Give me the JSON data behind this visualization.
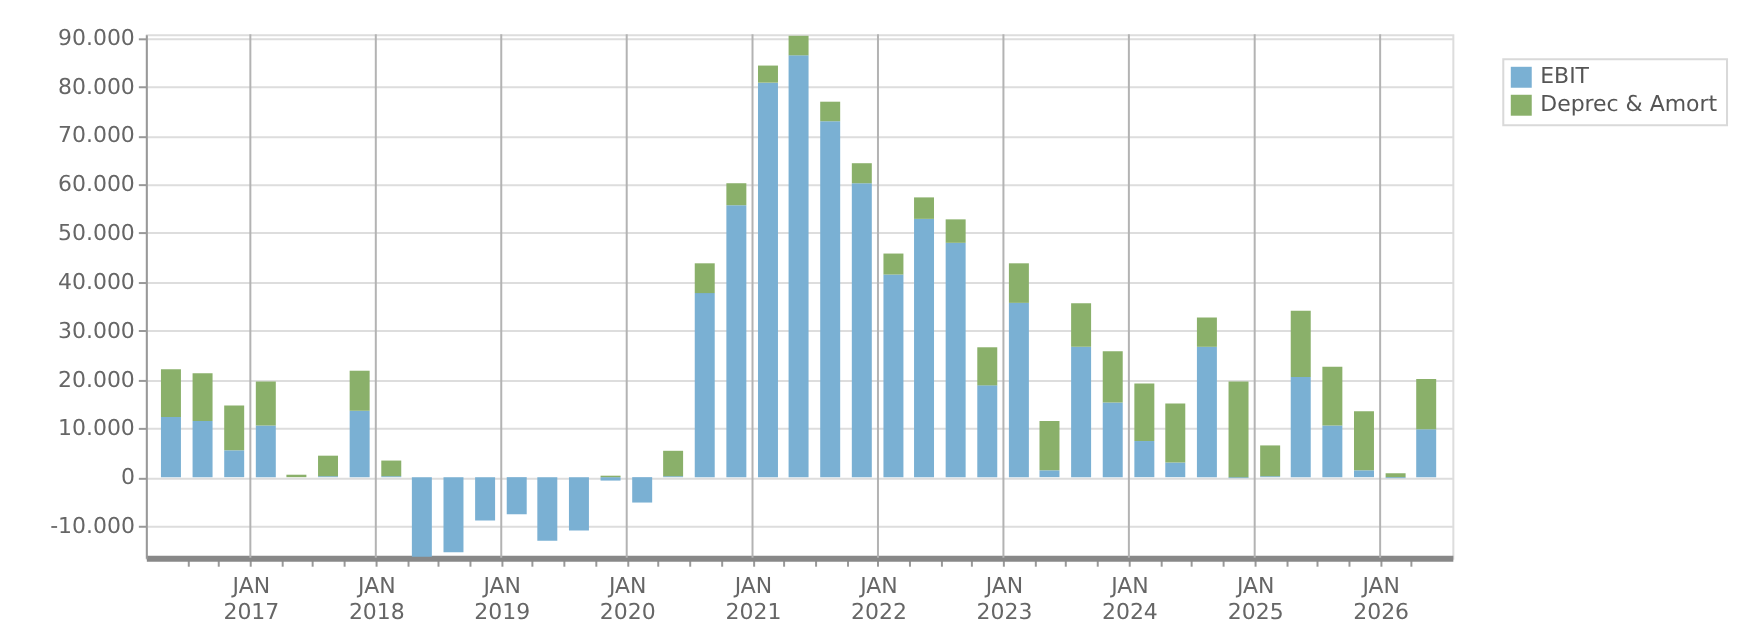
{
  "chart_data": {
    "type": "bar",
    "stacked": true,
    "x": [
      "2016-05-15",
      "2016-08-15",
      "2016-11-15",
      "2017-02-15",
      "2017-05-15",
      "2017-08-15",
      "2017-11-15",
      "2018-02-15",
      "2018-05-15",
      "2018-08-15",
      "2018-11-15",
      "2019-02-15",
      "2019-05-15",
      "2019-08-15",
      "2019-11-15",
      "2020-02-15",
      "2020-05-15",
      "2020-08-15",
      "2020-11-15",
      "2021-02-15",
      "2021-05-15",
      "2021-08-15",
      "2021-11-15",
      "2022-02-15",
      "2022-05-15",
      "2022-08-15",
      "2022-11-15",
      "2023-02-15",
      "2023-05-15",
      "2023-08-15",
      "2023-11-15",
      "2024-02-15",
      "2024-05-15",
      "2024-08-15",
      "2024-11-15",
      "2025-02-15",
      "2025-05-15",
      "2025-08-15",
      "2025-11-15",
      "2026-02-15",
      "2026-05-15"
    ],
    "series": [
      {
        "name": "EBIT",
        "color": "#7ab0d3",
        "values": [
          12300,
          11500,
          5500,
          10600,
          0,
          200,
          13600,
          200,
          -16300,
          -15400,
          -8900,
          -7600,
          -13000,
          -10900,
          -700,
          -5200,
          200,
          37700,
          55700,
          80800,
          86400,
          72900,
          60200,
          41500,
          52900,
          48000,
          18800,
          35700,
          1400,
          26700,
          15300,
          7400,
          3000,
          26700,
          -200,
          200,
          20500,
          10600,
          1400,
          -200,
          9800
        ]
      },
      {
        "name": "Deprec & Amort",
        "color": "#8ab06a",
        "values": [
          9800,
          9800,
          9200,
          9000,
          500,
          4200,
          8200,
          3200,
          0,
          0,
          0,
          0,
          0,
          0,
          300,
          0,
          5200,
          6100,
          4500,
          3500,
          4000,
          4000,
          4100,
          4300,
          4400,
          4800,
          7800,
          8100,
          10100,
          8900,
          10500,
          11800,
          12100,
          6000,
          19600,
          6300,
          13600,
          12000,
          12100,
          800,
          10300
        ]
      }
    ],
    "xlim": [
      "2016-04-01",
      "2026-07-01"
    ],
    "xticks": [
      {
        "value": "2016-07-01",
        "label": null
      },
      {
        "value": "2016-10-01",
        "label": null
      },
      {
        "value": "2017-01-01",
        "label": "JAN 2017"
      },
      {
        "value": "2017-04-01",
        "label": null
      },
      {
        "value": "2017-07-01",
        "label": null
      },
      {
        "value": "2017-10-01",
        "label": null
      },
      {
        "value": "2018-01-01",
        "label": "JAN 2018"
      },
      {
        "value": "2018-04-01",
        "label": null
      },
      {
        "value": "2018-07-01",
        "label": null
      },
      {
        "value": "2018-10-01",
        "label": null
      },
      {
        "value": "2019-01-01",
        "label": "JAN 2019"
      },
      {
        "value": "2019-04-01",
        "label": null
      },
      {
        "value": "2019-07-01",
        "label": null
      },
      {
        "value": "2019-10-01",
        "label": null
      },
      {
        "value": "2020-01-01",
        "label": "JAN 2020"
      },
      {
        "value": "2020-04-01",
        "label": null
      },
      {
        "value": "2020-07-01",
        "label": null
      },
      {
        "value": "2020-10-01",
        "label": null
      },
      {
        "value": "2021-01-01",
        "label": "JAN 2021"
      },
      {
        "value": "2021-04-01",
        "label": null
      },
      {
        "value": "2021-07-01",
        "label": null
      },
      {
        "value": "2021-10-01",
        "label": null
      },
      {
        "value": "2022-01-01",
        "label": "JAN 2022"
      },
      {
        "value": "2022-04-01",
        "label": null
      },
      {
        "value": "2022-07-01",
        "label": null
      },
      {
        "value": "2022-10-01",
        "label": null
      },
      {
        "value": "2023-01-01",
        "label": "JAN 2023"
      },
      {
        "value": "2023-04-01",
        "label": null
      },
      {
        "value": "2023-07-01",
        "label": null
      },
      {
        "value": "2023-10-01",
        "label": null
      },
      {
        "value": "2024-01-01",
        "label": "JAN 2024"
      },
      {
        "value": "2024-04-01",
        "label": null
      },
      {
        "value": "2024-07-01",
        "label": null
      },
      {
        "value": "2024-10-01",
        "label": null
      },
      {
        "value": "2025-01-01",
        "label": "JAN 2025"
      },
      {
        "value": "2025-04-01",
        "label": null
      },
      {
        "value": "2025-07-01",
        "label": null
      },
      {
        "value": "2025-10-01",
        "label": null
      },
      {
        "value": "2026-01-01",
        "label": "JAN 2026"
      },
      {
        "value": "2026-04-01",
        "label": null
      }
    ],
    "ylim": [
      -16500,
      90700
    ],
    "yticks": [
      {
        "value": -10000,
        "label": "-10.000"
      },
      0,
      {
        "value": 10000,
        "label": "10.000"
      },
      {
        "value": 20000,
        "label": "20.000"
      },
      {
        "value": 30000,
        "label": "30.000"
      },
      {
        "value": 40000,
        "label": "40.000"
      },
      {
        "value": 50000,
        "label": "50.000"
      },
      {
        "value": 60000,
        "label": "60.000"
      },
      {
        "value": 70000,
        "label": "70.000"
      },
      {
        "value": 80000,
        "label": "80.000"
      },
      {
        "value": 90000,
        "label": "90.000"
      }
    ],
    "grid": true,
    "legend": "top right"
  }
}
